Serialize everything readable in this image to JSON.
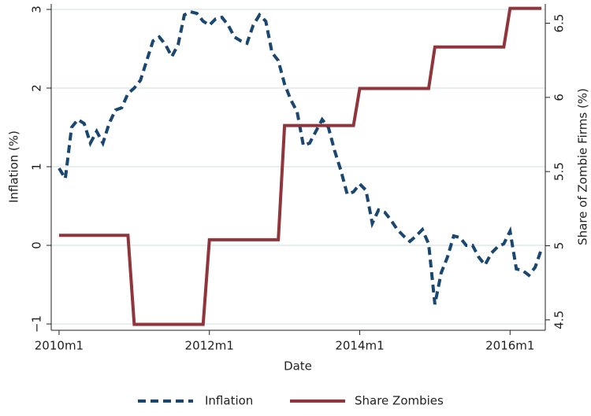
{
  "chart_data": {
    "type": "line",
    "xlabel": "Date",
    "ylabel": "Inflation (%)",
    "y2label": "Share of Zombie Firms (%)",
    "x": [
      "2010m1",
      "2010m2",
      "2010m3",
      "2010m4",
      "2010m5",
      "2010m6",
      "2010m7",
      "2010m8",
      "2010m9",
      "2010m10",
      "2010m11",
      "2010m12",
      "2011m1",
      "2011m2",
      "2011m3",
      "2011m4",
      "2011m5",
      "2011m6",
      "2011m7",
      "2011m8",
      "2011m9",
      "2011m10",
      "2011m11",
      "2011m12",
      "2012m1",
      "2012m2",
      "2012m3",
      "2012m4",
      "2012m5",
      "2012m6",
      "2012m7",
      "2012m8",
      "2012m9",
      "2012m10",
      "2012m11",
      "2012m12",
      "2013m1",
      "2013m2",
      "2013m3",
      "2013m4",
      "2013m5",
      "2013m6",
      "2013m7",
      "2013m8",
      "2013m9",
      "2013m10",
      "2013m11",
      "2013m12",
      "2014m1",
      "2014m2",
      "2014m3",
      "2014m4",
      "2014m5",
      "2014m6",
      "2014m7",
      "2014m8",
      "2014m9",
      "2014m10",
      "2014m11",
      "2014m12",
      "2015m1",
      "2015m2",
      "2015m3",
      "2015m4",
      "2015m5",
      "2015m6",
      "2015m7",
      "2015m8",
      "2015m9",
      "2015m10",
      "2015m11",
      "2015m12",
      "2016m1",
      "2016m2",
      "2016m3",
      "2016m4",
      "2016m5",
      "2016m6"
    ],
    "series": [
      {
        "name": "Inflation",
        "color": "#1a476f",
        "dash": true,
        "values": [
          0.98,
          0.85,
          1.5,
          1.6,
          1.55,
          1.3,
          1.45,
          1.3,
          1.55,
          1.72,
          1.75,
          1.93,
          2.0,
          2.1,
          2.35,
          2.6,
          2.65,
          2.55,
          2.4,
          2.55,
          2.93,
          2.97,
          2.95,
          2.85,
          2.8,
          2.88,
          2.9,
          2.8,
          2.65,
          2.6,
          2.57,
          2.8,
          2.93,
          2.85,
          2.45,
          2.35,
          2.05,
          1.85,
          1.7,
          1.27,
          1.3,
          1.45,
          1.6,
          1.5,
          1.2,
          0.95,
          0.65,
          0.68,
          0.78,
          0.7,
          0.28,
          0.45,
          0.42,
          0.32,
          0.2,
          0.12,
          0.05,
          0.12,
          0.2,
          0.02,
          -0.75,
          -0.35,
          -0.15,
          0.12,
          0.1,
          0.0,
          0.0,
          -0.15,
          -0.25,
          -0.1,
          -0.02,
          0.02,
          0.18,
          -0.3,
          -0.32,
          -0.38,
          -0.28,
          -0.05
        ]
      },
      {
        "name": "Share Zombies",
        "color": "#90353b",
        "dash": false,
        "axis": "y2",
        "values": [
          5.07,
          5.07,
          5.07,
          5.07,
          5.07,
          5.07,
          5.07,
          5.07,
          5.07,
          5.07,
          5.07,
          5.07,
          4.47,
          4.47,
          4.47,
          4.47,
          4.47,
          4.47,
          4.47,
          4.47,
          4.47,
          4.47,
          4.47,
          4.47,
          5.04,
          5.04,
          5.04,
          5.04,
          5.04,
          5.04,
          5.04,
          5.04,
          5.04,
          5.04,
          5.04,
          5.04,
          5.81,
          5.81,
          5.81,
          5.81,
          5.81,
          5.81,
          5.81,
          5.81,
          5.81,
          5.81,
          5.81,
          5.81,
          6.06,
          6.06,
          6.06,
          6.06,
          6.06,
          6.06,
          6.06,
          6.06,
          6.06,
          6.06,
          6.06,
          6.06,
          6.34,
          6.34,
          6.34,
          6.34,
          6.34,
          6.34,
          6.34,
          6.34,
          6.34,
          6.34,
          6.34,
          6.34,
          6.6,
          6.6,
          6.6,
          6.6,
          6.6,
          6.6
        ]
      }
    ],
    "xlim": [
      "2009m12",
      "2016m7"
    ],
    "xticks": [
      "2010m1",
      "2012m1",
      "2014m1",
      "2016m1"
    ],
    "ylim": [
      -1.08,
      3.07
    ],
    "yticks": [
      {
        "value": -1,
        "label": "−1"
      },
      0,
      1,
      2,
      3
    ],
    "y2lim": [
      4.43,
      6.63
    ],
    "y2ticks": [
      4.5,
      5,
      5.5,
      6,
      6.5
    ],
    "grid": true,
    "legend": "bottom"
  }
}
